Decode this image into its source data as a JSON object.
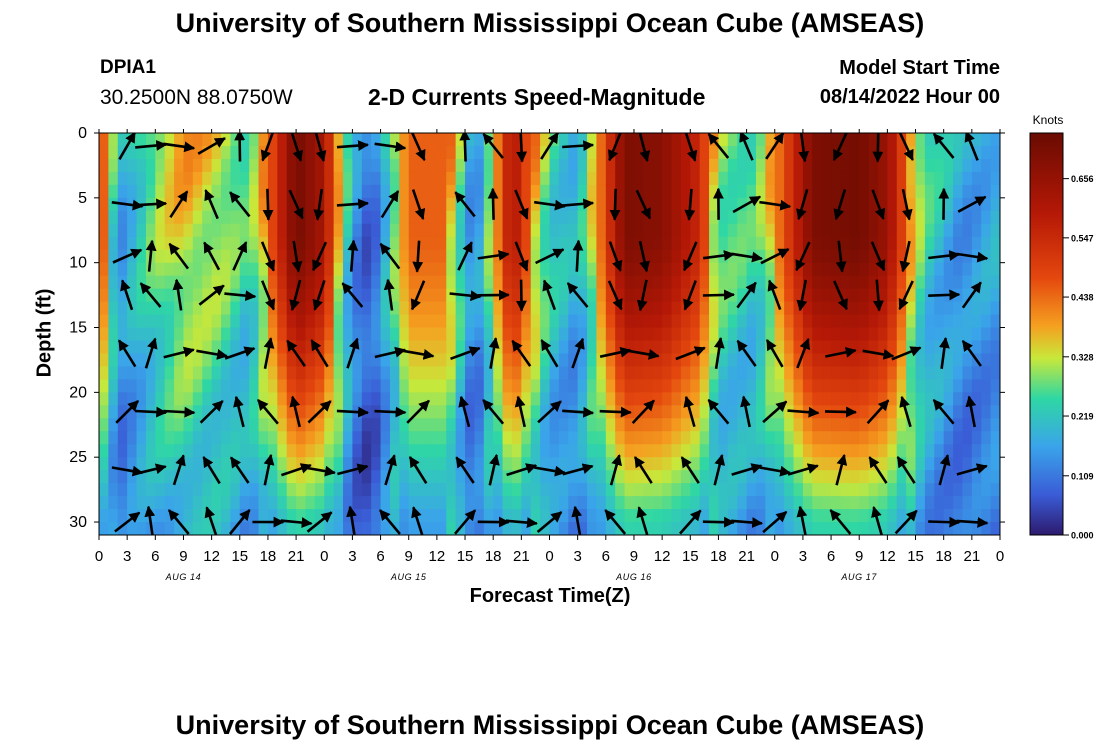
{
  "header": {
    "title": "University of Southern Mississippi Ocean Cube (AMSEAS)",
    "station": "DPIA1",
    "coords": "30.2500N  88.0750W",
    "subtitle": "2-D Currents Speed-Magnitude",
    "model_start_label": "Model Start Time",
    "model_start_value": "08/14/2022 Hour 00"
  },
  "footer": {
    "title": "University of Southern Mississippi Ocean Cube (AMSEAS)"
  },
  "colors": {
    "low": "#2d1a6e",
    "mid": "#2fd7a4",
    "high": "#7b0d02",
    "arrow": "#000000"
  },
  "chart_data": {
    "type": "heatmap",
    "xlabel": "Forecast Time(Z)",
    "ylabel": "Depth (ft)",
    "colorbar_label": "Knots",
    "x_tick_labels": [
      "0",
      "3",
      "6",
      "9",
      "12",
      "15",
      "18",
      "21",
      "0",
      "3",
      "6",
      "9",
      "12",
      "15",
      "18",
      "21",
      "0",
      "3",
      "6",
      "9",
      "12",
      "15",
      "18",
      "21",
      "0",
      "3",
      "6",
      "9",
      "12",
      "15",
      "18",
      "21",
      "0"
    ],
    "x_hours_range": [
      0,
      96
    ],
    "day_labels": [
      {
        "text": "AUG 14",
        "hour": 9
      },
      {
        "text": "AUG 15",
        "hour": 33
      },
      {
        "text": "AUG 16",
        "hour": 57
      },
      {
        "text": "AUG 17",
        "hour": 81
      }
    ],
    "y_ticks": [
      0,
      5,
      10,
      15,
      20,
      25,
      30
    ],
    "ylim": [
      0,
      31
    ],
    "colorbar_ticks": [
      "0.000",
      "0.109",
      "0.219",
      "0.328",
      "0.438",
      "0.547",
      "0.656"
    ],
    "colorbar_range": [
      0,
      0.74
    ],
    "speed_profile_surface": [
      {
        "hour": 0,
        "speed": 0.55
      },
      {
        "hour": 2,
        "speed": 0.15
      },
      {
        "hour": 6,
        "speed": 0.3
      },
      {
        "hour": 9,
        "speed": 0.38
      },
      {
        "hour": 13,
        "speed": 0.33
      },
      {
        "hour": 16,
        "speed": 0.25
      },
      {
        "hour": 21,
        "speed": 0.72
      },
      {
        "hour": 24,
        "speed": 0.62
      },
      {
        "hour": 27,
        "speed": 0.15
      },
      {
        "hour": 29,
        "speed": 0.06
      },
      {
        "hour": 33,
        "speed": 0.45
      },
      {
        "hour": 37,
        "speed": 0.45
      },
      {
        "hour": 40,
        "speed": 0.1
      },
      {
        "hour": 44,
        "speed": 0.62
      },
      {
        "hour": 48,
        "speed": 0.25
      },
      {
        "hour": 51,
        "speed": 0.18
      },
      {
        "hour": 56,
        "speed": 0.7
      },
      {
        "hour": 60,
        "speed": 0.68
      },
      {
        "hour": 64,
        "speed": 0.55
      },
      {
        "hour": 66,
        "speed": 0.3
      },
      {
        "hour": 70,
        "speed": 0.25
      },
      {
        "hour": 76,
        "speed": 0.7
      },
      {
        "hour": 81,
        "speed": 0.72
      },
      {
        "hour": 84,
        "speed": 0.65
      },
      {
        "hour": 88,
        "speed": 0.25
      },
      {
        "hour": 92,
        "speed": 0.15
      },
      {
        "hour": 96,
        "speed": 0.18
      }
    ],
    "arrow_depths_ft": [
      1,
      5.5,
      9.5,
      12.5,
      17,
      21.5,
      26,
      30
    ],
    "arrow_hours": [
      3,
      5.5,
      8.5,
      12,
      15,
      18,
      21,
      23.5,
      27,
      31,
      34,
      39,
      42,
      45,
      48,
      51,
      55,
      58,
      63,
      66,
      69,
      72,
      75,
      79,
      83,
      86,
      90,
      93
    ]
  }
}
